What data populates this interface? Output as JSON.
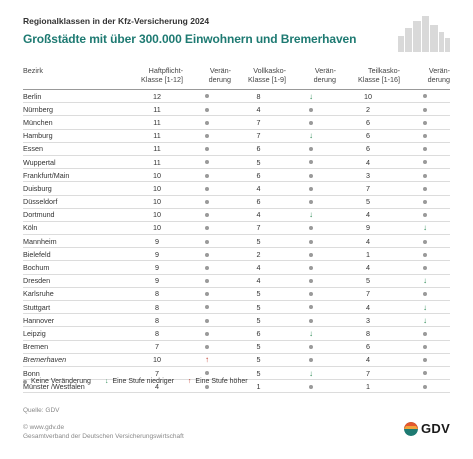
{
  "supertitle": "Regionalklassen in der Kfz-Versicherung 2024",
  "title": "Großstädte mit über 300.000 Einwohnern und Bremerhaven",
  "columns": {
    "bezirk": "Bezirk",
    "haft": "Haftpflicht-",
    "haft2": "Klasse [1-12]",
    "veraen1": "Verän-",
    "veraen2": "derung",
    "voll": "Vollkasko-",
    "voll2": "Klasse [1-9]",
    "teil": "Teilkasko-",
    "teil2": "Klasse [1-16]"
  },
  "rows": [
    {
      "name": "Berlin",
      "h": "12",
      "hc": "none",
      "v": "8",
      "vc": "down",
      "t": "10",
      "tc": "none"
    },
    {
      "name": "Nürnberg",
      "h": "11",
      "hc": "none",
      "v": "4",
      "vc": "none",
      "t": "2",
      "tc": "none"
    },
    {
      "name": "München",
      "h": "11",
      "hc": "none",
      "v": "7",
      "vc": "none",
      "t": "6",
      "tc": "none"
    },
    {
      "name": "Hamburg",
      "h": "11",
      "hc": "none",
      "v": "7",
      "vc": "down",
      "t": "6",
      "tc": "none"
    },
    {
      "name": "Essen",
      "h": "11",
      "hc": "none",
      "v": "6",
      "vc": "none",
      "t": "6",
      "tc": "none"
    },
    {
      "name": "Wuppertal",
      "h": "11",
      "hc": "none",
      "v": "5",
      "vc": "none",
      "t": "4",
      "tc": "none"
    },
    {
      "name": "Frankfurt/Main",
      "h": "10",
      "hc": "none",
      "v": "6",
      "vc": "none",
      "t": "3",
      "tc": "none"
    },
    {
      "name": "Duisburg",
      "h": "10",
      "hc": "none",
      "v": "4",
      "vc": "none",
      "t": "7",
      "tc": "none"
    },
    {
      "name": "Düsseldorf",
      "h": "10",
      "hc": "none",
      "v": "6",
      "vc": "none",
      "t": "5",
      "tc": "none"
    },
    {
      "name": "Dortmund",
      "h": "10",
      "hc": "none",
      "v": "4",
      "vc": "down",
      "t": "4",
      "tc": "none"
    },
    {
      "name": "Köln",
      "h": "10",
      "hc": "none",
      "v": "7",
      "vc": "none",
      "t": "9",
      "tc": "down"
    },
    {
      "name": "Mannheim",
      "h": "9",
      "hc": "none",
      "v": "5",
      "vc": "none",
      "t": "4",
      "tc": "none"
    },
    {
      "name": "Bielefeld",
      "h": "9",
      "hc": "none",
      "v": "2",
      "vc": "none",
      "t": "1",
      "tc": "none"
    },
    {
      "name": "Bochum",
      "h": "9",
      "hc": "none",
      "v": "4",
      "vc": "none",
      "t": "4",
      "tc": "none"
    },
    {
      "name": "Dresden",
      "h": "9",
      "hc": "none",
      "v": "4",
      "vc": "none",
      "t": "5",
      "tc": "down"
    },
    {
      "name": "Karlsruhe",
      "h": "8",
      "hc": "none",
      "v": "5",
      "vc": "none",
      "t": "7",
      "tc": "none"
    },
    {
      "name": "Stuttgart",
      "h": "8",
      "hc": "none",
      "v": "5",
      "vc": "none",
      "t": "4",
      "tc": "down"
    },
    {
      "name": "Hannover",
      "h": "8",
      "hc": "none",
      "v": "5",
      "vc": "none",
      "t": "3",
      "tc": "down"
    },
    {
      "name": "Leipzig",
      "h": "8",
      "hc": "none",
      "v": "6",
      "vc": "down",
      "t": "8",
      "tc": "none"
    },
    {
      "name": "Bremen",
      "h": "7",
      "hc": "none",
      "v": "5",
      "vc": "none",
      "t": "6",
      "tc": "none"
    },
    {
      "name": "Bremerhaven",
      "h": "10",
      "hc": "up",
      "v": "5",
      "vc": "none",
      "t": "4",
      "tc": "none",
      "italic": true
    },
    {
      "name": "Bonn",
      "h": "7",
      "hc": "none",
      "v": "5",
      "vc": "down",
      "t": "7",
      "tc": "none"
    },
    {
      "name": "Münster /Westfalen",
      "h": "4",
      "hc": "none",
      "v": "1",
      "vc": "none",
      "t": "1",
      "tc": "none"
    }
  ],
  "legend": {
    "none": "Keine Veränderung",
    "down": "Eine Stufe niedriger",
    "up": "Eine Stufe höher"
  },
  "source": "Quelle: GDV",
  "footer1": "© www.gdv.de",
  "footer2": "Gesamtverband der Deutschen Versicherungswirtschaft",
  "logo": "GDV",
  "colors": {
    "accent": "#1e7a72",
    "down": "#2e8b57",
    "up": "#c0392b"
  }
}
